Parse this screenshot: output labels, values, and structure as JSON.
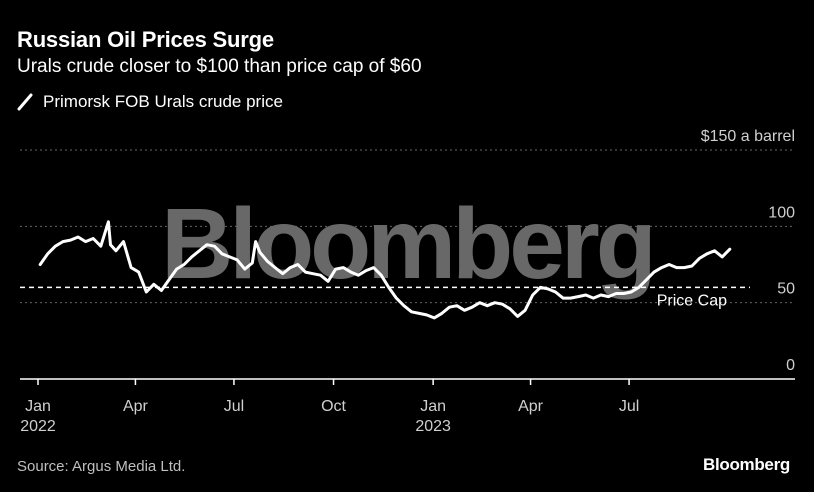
{
  "header": {
    "title": "Russian Oil Prices Surge",
    "subtitle": "Urals crude closer to $100 than price cap of $60"
  },
  "watermark": "Bloomberg",
  "footer": {
    "source": "Source: Argus Media Ltd.",
    "brand": "Bloomberg"
  },
  "colors": {
    "background": "#000000",
    "series": "#ffffff",
    "grid": "#666666",
    "watermark": "#7a7a7a"
  },
  "chart_data": {
    "type": "line",
    "title": "Russian Oil Prices Surge",
    "subtitle": "Urals crude closer to $100 than price cap of $60",
    "ylabel": "",
    "xlabel": "",
    "ylim": [
      0,
      150
    ],
    "xlim": [
      "2022-01-01",
      "2023-10-05"
    ],
    "grid": true,
    "legend_position": "top-left",
    "y_ticks": [
      {
        "value": 0,
        "label": "0"
      },
      {
        "value": 50,
        "label": "50"
      },
      {
        "value": 100,
        "label": "100"
      },
      {
        "value": 150,
        "label": "$150 a barrel"
      }
    ],
    "x_ticks": [
      {
        "date": "2022-01-01",
        "label": "Jan",
        "sublabel": "2022"
      },
      {
        "date": "2022-04-01",
        "label": "Apr",
        "sublabel": ""
      },
      {
        "date": "2022-07-01",
        "label": "Jul",
        "sublabel": ""
      },
      {
        "date": "2022-10-01",
        "label": "Oct",
        "sublabel": ""
      },
      {
        "date": "2023-01-01",
        "label": "Jan",
        "sublabel": "2023"
      },
      {
        "date": "2023-04-01",
        "label": "Apr",
        "sublabel": ""
      },
      {
        "date": "2023-07-01",
        "label": "Jul",
        "sublabel": ""
      }
    ],
    "reference_lines": [
      {
        "value": 60,
        "label": "Price Cap",
        "style": "dashed"
      }
    ],
    "series": [
      {
        "name": "Primorsk FOB Urals crude price",
        "points": [
          [
            "2022-01-03",
            75
          ],
          [
            "2022-01-10",
            82
          ],
          [
            "2022-01-17",
            87
          ],
          [
            "2022-01-24",
            90
          ],
          [
            "2022-01-31",
            91
          ],
          [
            "2022-02-07",
            93
          ],
          [
            "2022-02-14",
            90
          ],
          [
            "2022-02-21",
            92
          ],
          [
            "2022-02-28",
            87
          ],
          [
            "2022-03-07",
            103
          ],
          [
            "2022-03-09",
            88
          ],
          [
            "2022-03-14",
            84
          ],
          [
            "2022-03-21",
            90
          ],
          [
            "2022-03-28",
            73
          ],
          [
            "2022-04-04",
            70
          ],
          [
            "2022-04-11",
            57
          ],
          [
            "2022-04-18",
            62
          ],
          [
            "2022-04-25",
            58
          ],
          [
            "2022-05-02",
            65
          ],
          [
            "2022-05-09",
            72
          ],
          [
            "2022-05-16",
            75
          ],
          [
            "2022-05-23",
            80
          ],
          [
            "2022-05-30",
            84
          ],
          [
            "2022-06-06",
            88
          ],
          [
            "2022-06-13",
            87
          ],
          [
            "2022-06-20",
            82
          ],
          [
            "2022-06-27",
            80
          ],
          [
            "2022-07-04",
            78
          ],
          [
            "2022-07-11",
            72
          ],
          [
            "2022-07-18",
            76
          ],
          [
            "2022-07-21",
            90
          ],
          [
            "2022-07-25",
            83
          ],
          [
            "2022-08-01",
            77
          ],
          [
            "2022-08-08",
            73
          ],
          [
            "2022-08-15",
            69
          ],
          [
            "2022-08-22",
            73
          ],
          [
            "2022-08-29",
            75
          ],
          [
            "2022-09-05",
            70
          ],
          [
            "2022-09-12",
            69
          ],
          [
            "2022-09-19",
            68
          ],
          [
            "2022-09-26",
            64
          ],
          [
            "2022-10-03",
            72
          ],
          [
            "2022-10-10",
            73
          ],
          [
            "2022-10-17",
            70
          ],
          [
            "2022-10-24",
            68
          ],
          [
            "2022-10-31",
            71
          ],
          [
            "2022-11-07",
            73
          ],
          [
            "2022-11-14",
            68
          ],
          [
            "2022-11-21",
            60
          ],
          [
            "2022-11-28",
            53
          ],
          [
            "2022-12-05",
            48
          ],
          [
            "2022-12-12",
            44
          ],
          [
            "2022-12-19",
            43
          ],
          [
            "2022-12-26",
            42
          ],
          [
            "2023-01-02",
            40
          ],
          [
            "2023-01-09",
            43
          ],
          [
            "2023-01-16",
            47
          ],
          [
            "2023-01-23",
            48
          ],
          [
            "2023-01-30",
            45
          ],
          [
            "2023-02-06",
            47
          ],
          [
            "2023-02-13",
            50
          ],
          [
            "2023-02-20",
            48
          ],
          [
            "2023-02-27",
            50
          ],
          [
            "2023-03-06",
            49
          ],
          [
            "2023-03-13",
            46
          ],
          [
            "2023-03-20",
            41
          ],
          [
            "2023-03-27",
            45
          ],
          [
            "2023-04-03",
            55
          ],
          [
            "2023-04-10",
            60
          ],
          [
            "2023-04-17",
            59
          ],
          [
            "2023-04-24",
            57
          ],
          [
            "2023-05-01",
            53
          ],
          [
            "2023-05-08",
            53
          ],
          [
            "2023-05-15",
            54
          ],
          [
            "2023-05-22",
            55
          ],
          [
            "2023-05-29",
            53
          ],
          [
            "2023-06-05",
            55
          ],
          [
            "2023-06-12",
            54
          ],
          [
            "2023-06-19",
            56
          ],
          [
            "2023-06-26",
            56
          ],
          [
            "2023-07-03",
            57
          ],
          [
            "2023-07-10",
            60
          ],
          [
            "2023-07-17",
            65
          ],
          [
            "2023-07-24",
            70
          ],
          [
            "2023-07-31",
            73
          ],
          [
            "2023-08-07",
            75
          ],
          [
            "2023-08-14",
            73
          ],
          [
            "2023-08-21",
            73
          ],
          [
            "2023-08-28",
            74
          ],
          [
            "2023-09-04",
            79
          ],
          [
            "2023-09-11",
            82
          ],
          [
            "2023-09-18",
            84
          ],
          [
            "2023-09-25",
            80
          ],
          [
            "2023-10-02",
            85
          ]
        ]
      }
    ]
  }
}
